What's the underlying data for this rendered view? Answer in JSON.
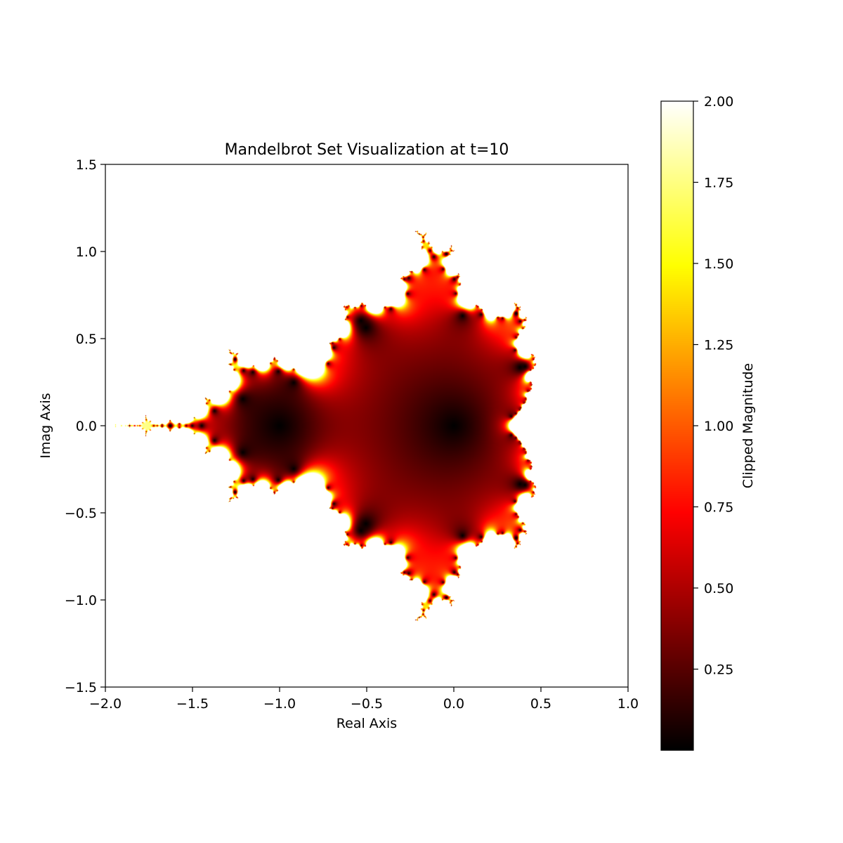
{
  "chart_data": {
    "type": "heatmap",
    "title": "Mandelbrot Set Visualization at t=10",
    "xlabel": "Real Axis",
    "ylabel": "Imag Axis",
    "xlim": [
      -2.0,
      1.0
    ],
    "ylim": [
      -1.5,
      1.5
    ],
    "xticks": [
      -2.0,
      -1.5,
      -1.0,
      -0.5,
      0.0,
      0.5,
      1.0
    ],
    "xtick_labels": [
      "−2.0",
      "−1.5",
      "−1.0",
      "−0.5",
      "0.0",
      "0.5",
      "1.0"
    ],
    "yticks": [
      -1.5,
      -1.0,
      -0.5,
      0.0,
      0.5,
      1.0,
      1.5
    ],
    "ytick_labels": [
      "−1.5",
      "−1.0",
      "−0.5",
      "0.0",
      "0.5",
      "1.0",
      "1.5"
    ],
    "colorbar": {
      "label": "Clipped Magnitude",
      "colormap": "hot",
      "range": [
        0.0,
        2.0
      ],
      "ticks": [
        0.25,
        0.5,
        0.75,
        1.0,
        1.25,
        1.5,
        1.75,
        2.0
      ],
      "tick_labels": [
        "0.25",
        "0.50",
        "0.75",
        "1.00",
        "1.25",
        "1.50",
        "1.75",
        "2.00"
      ]
    },
    "grid": false,
    "legend": "none",
    "colors": {
      "low": "#000000",
      "mid_red": "#ff0000",
      "orange": "#ff8000",
      "yellow": "#ffff00",
      "high": "#ffffff",
      "background": "#ffffff"
    },
    "magnitude_field": {
      "max_iterations": 10,
      "clip_max": 2.0,
      "interior_low_points": [
        [
          -1.0,
          0.0
        ],
        [
          0.0,
          0.0
        ]
      ]
    }
  }
}
